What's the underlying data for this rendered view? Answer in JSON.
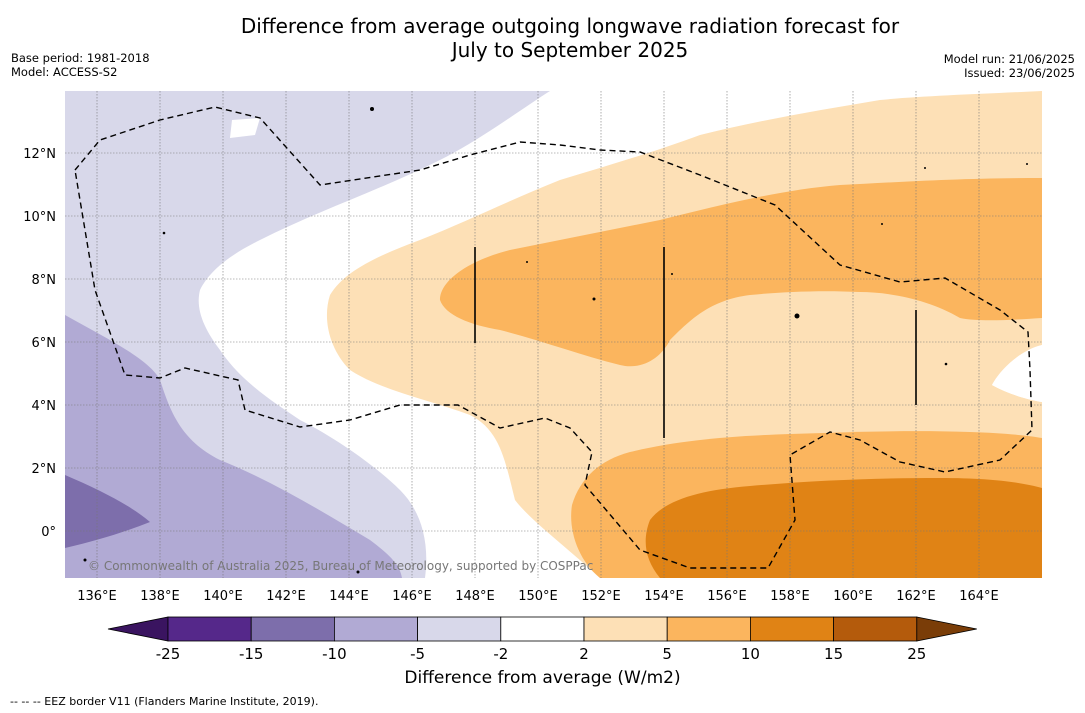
{
  "title_line1": "Difference from average outgoing longwave radiation forecast for",
  "title_line2": "July to September 2025",
  "base_period": "Base period: 1981-2018",
  "model": "Model: ACCESS-S2",
  "model_run": "Model run: 21/06/2025",
  "issued": "Issued: 23/06/2025",
  "copyright": "© Commonwealth of Australia 2025, Bureau of Meteorology, supported by COSPPac",
  "footnote": "--  --  -- EEZ border V11 (Flanders Marine Institute, 2019).",
  "lat_labels": [
    "12°N",
    "10°N",
    "8°N",
    "6°N",
    "4°N",
    "2°N",
    "0°"
  ],
  "lon_labels": [
    "136°E",
    "138°E",
    "140°E",
    "142°E",
    "144°E",
    "146°E",
    "148°E",
    "150°E",
    "152°E",
    "154°E",
    "156°E",
    "158°E",
    "160°E",
    "162°E",
    "164°E"
  ],
  "colorbar": {
    "title": "Difference from average (W/m2)",
    "ticks": [
      "-25",
      "-15",
      "-10",
      "-5",
      "-2",
      "2",
      "5",
      "10",
      "15",
      "25"
    ],
    "colors": [
      "#3a1460",
      "#55288a",
      "#7d6eab",
      "#b1aad4",
      "#d8d8ea",
      "#ffffff",
      "#fde0b6",
      "#fbb55e",
      "#e08315",
      "#b45b0c",
      "#7a3d08"
    ]
  }
}
